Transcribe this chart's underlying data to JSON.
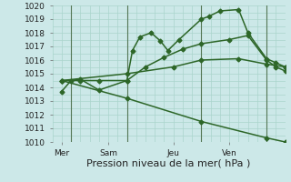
{
  "xlabel": "Pression niveau de la mer( hPa )",
  "bg_color": "#cce8e8",
  "grid_color": "#aad4cc",
  "line_color": "#2d6628",
  "vline_color": "#557755",
  "ylim": [
    1010,
    1020
  ],
  "yticks": [
    1010,
    1011,
    1012,
    1013,
    1014,
    1015,
    1016,
    1017,
    1018,
    1019,
    1020
  ],
  "xtick_labels": [
    "Mer",
    "Sam",
    "Jeu",
    "Ven"
  ],
  "xtick_positions": [
    0.5,
    3.0,
    6.5,
    9.5
  ],
  "vline_positions": [
    1.0,
    4.0,
    8.0,
    11.5
  ],
  "xlim": [
    0,
    12.5
  ],
  "lines": [
    {
      "x": [
        0.5,
        1.0,
        1.5,
        2.5,
        4.0,
        4.3,
        4.7,
        5.3,
        5.8,
        6.2,
        6.8,
        8.0,
        8.4,
        9.0,
        10.0,
        10.5,
        11.5,
        12.0,
        12.5
      ],
      "y": [
        1013.7,
        1014.5,
        1014.6,
        1013.8,
        1014.5,
        1016.7,
        1017.7,
        1018.0,
        1017.4,
        1016.7,
        1017.5,
        1019.0,
        1019.2,
        1019.6,
        1019.7,
        1018.0,
        1016.1,
        1015.8,
        1015.5
      ]
    },
    {
      "x": [
        0.5,
        1.5,
        2.5,
        4.0,
        5.0,
        6.0,
        7.0,
        8.0,
        9.5,
        10.5,
        11.5,
        12.0,
        12.5
      ],
      "y": [
        1014.5,
        1014.5,
        1014.5,
        1014.5,
        1015.5,
        1016.2,
        1016.8,
        1017.2,
        1017.5,
        1017.8,
        1016.0,
        1015.5,
        1015.2
      ]
    },
    {
      "x": [
        0.5,
        4.0,
        6.5,
        8.0,
        10.0,
        11.5,
        12.5
      ],
      "y": [
        1014.5,
        1015.0,
        1015.5,
        1016.0,
        1016.1,
        1015.7,
        1015.5
      ]
    },
    {
      "x": [
        0.5,
        4.0,
        8.0,
        11.5,
        12.5
      ],
      "y": [
        1014.5,
        1013.2,
        1011.5,
        1010.3,
        1010.0
      ]
    }
  ],
  "marker": "D",
  "marker_size": 2.5,
  "linewidth": 1.1,
  "xlabel_fontsize": 8,
  "tick_fontsize": 6.5
}
